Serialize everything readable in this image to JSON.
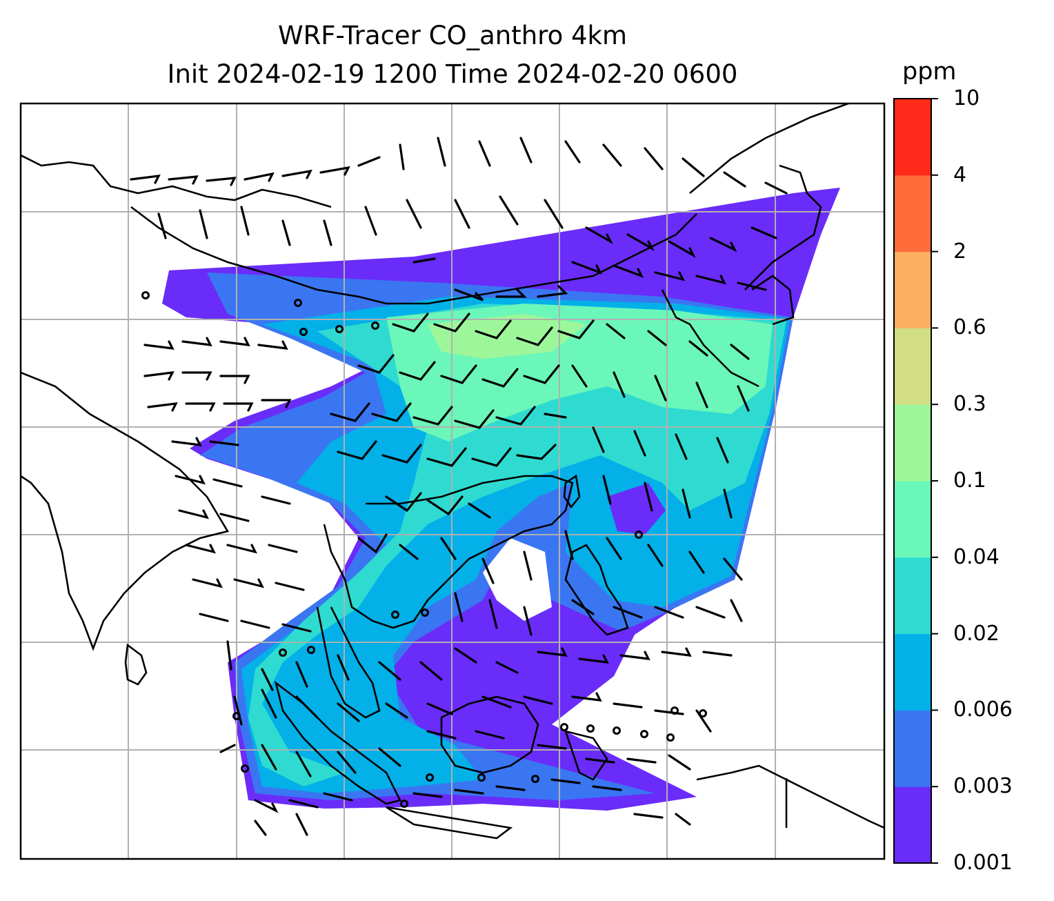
{
  "title": {
    "line1": "WRF-Tracer CO_anthro 4km",
    "line2": "Init 2024-02-19 1200 Time 2024-02-20 0600"
  },
  "colorbar": {
    "unit": "ppm",
    "levels": [
      "0.001",
      "0.003",
      "0.006",
      "0.02",
      "0.04",
      "0.1",
      "0.3",
      "0.6",
      "2",
      "4",
      "10"
    ],
    "colors": [
      "#6a2cf9",
      "#3a76f2",
      "#03b0e8",
      "#2fdbd0",
      "#6bf7b9",
      "#9df79a",
      "#d1de84",
      "#fcb060",
      "#ff6c3a",
      "#ff2a1a"
    ]
  },
  "map": {
    "gridlines": true,
    "plume_colors": {
      "lowest": "#6a2cf9",
      "low": "#3a76f2",
      "mid": "#03b0e8",
      "midhigh": "#2fdbd0",
      "high": "#6bf7b9",
      "higher": "#9df79a"
    }
  }
}
